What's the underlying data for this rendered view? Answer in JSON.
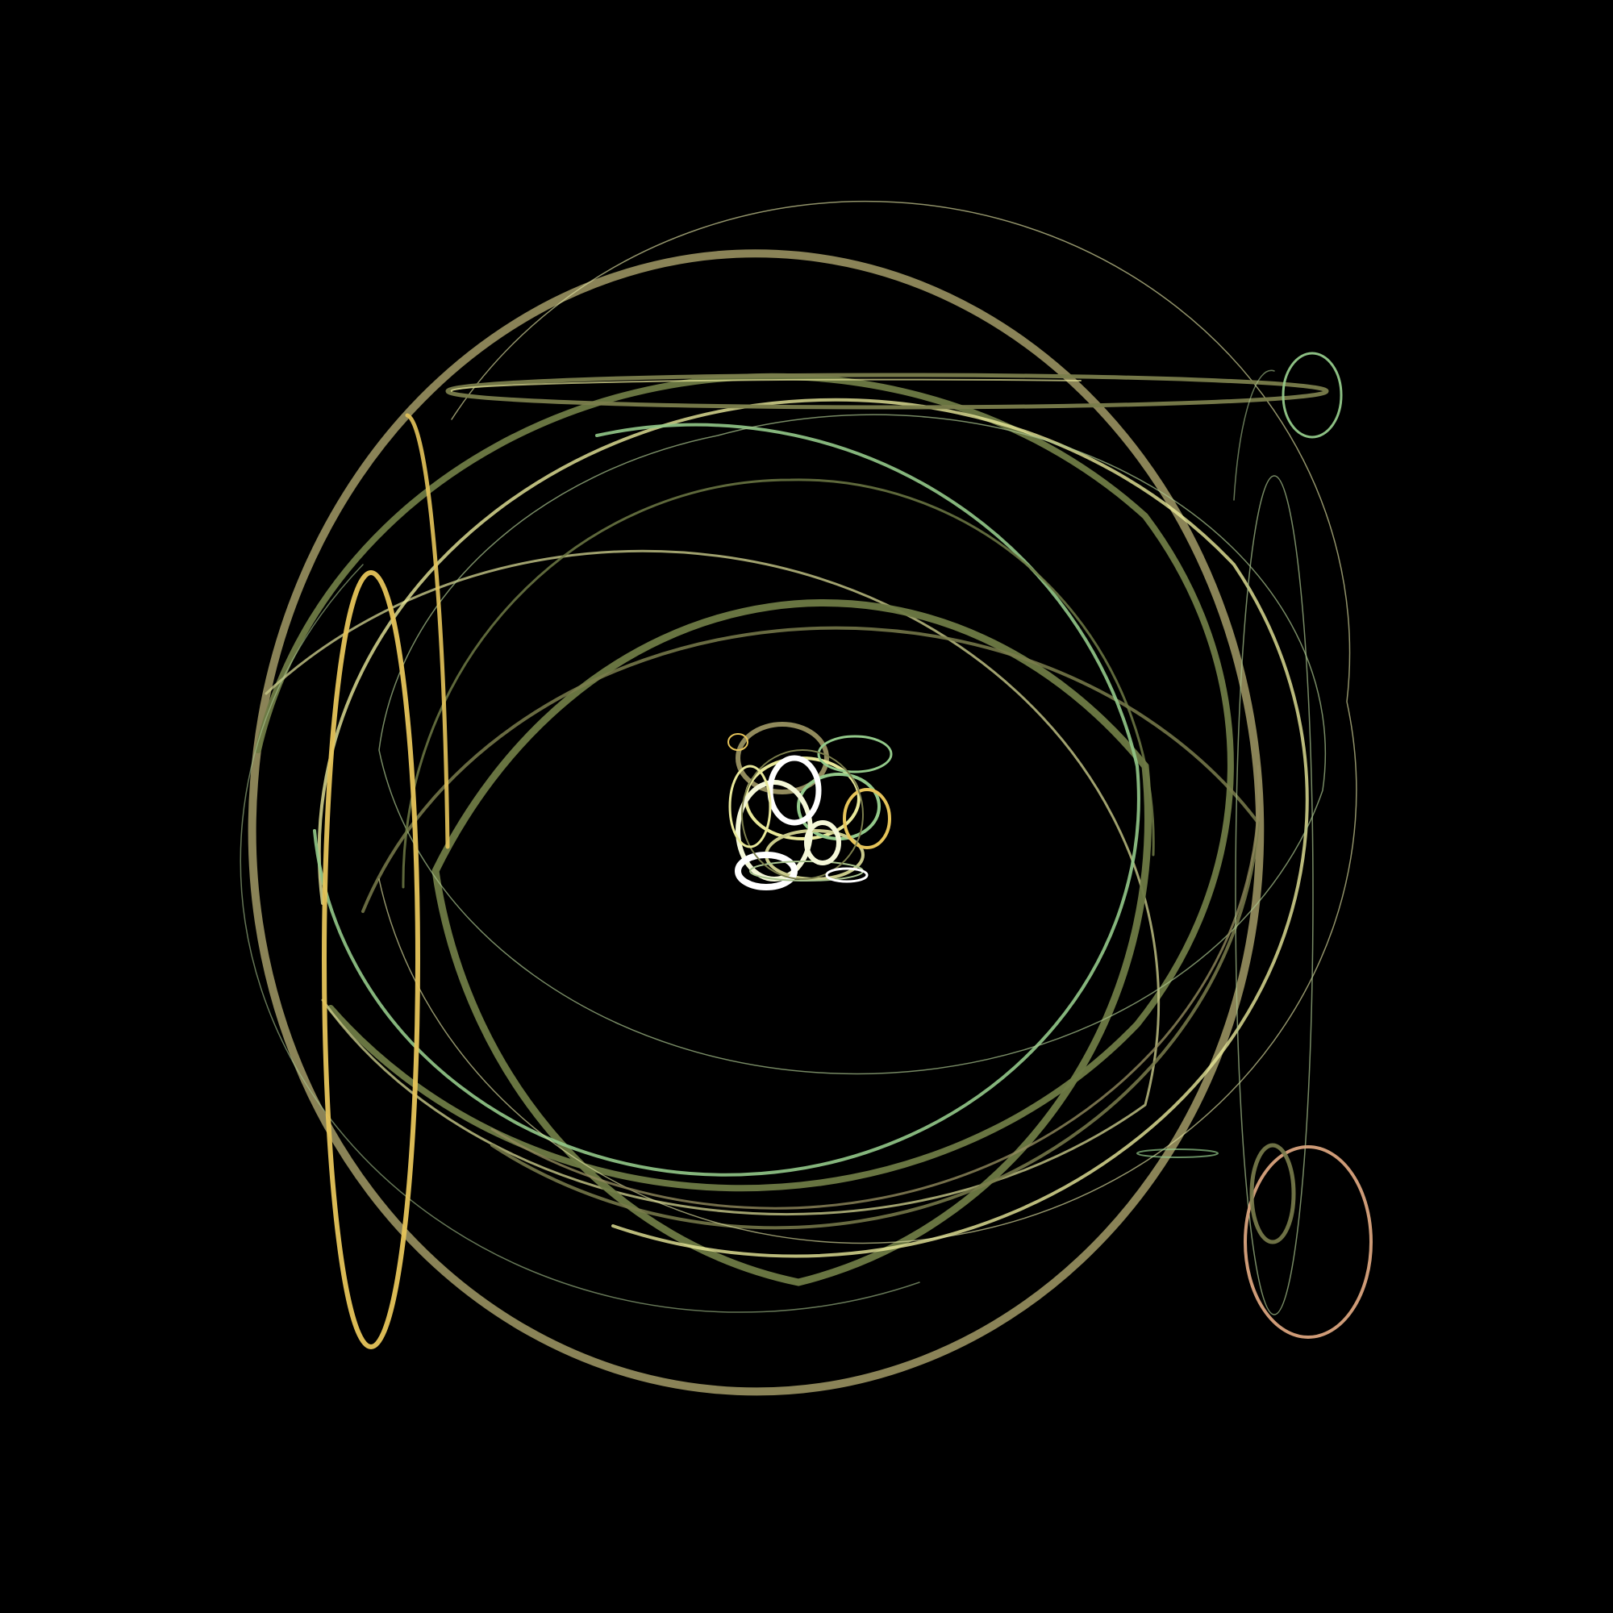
{
  "scene": {
    "background": "#000000",
    "palette": {
      "olive": "#7a7d4c",
      "khaki": "#918a5c",
      "moss": "#6e7a45",
      "pale_yellow": "#e8e89a",
      "gold": "#e6c45a",
      "mint": "#93c98a",
      "sage": "#a9c48f",
      "peach": "#d9a37d",
      "core_white": "#f4f7d8"
    },
    "core_glow": "#f8fbe6"
  }
}
